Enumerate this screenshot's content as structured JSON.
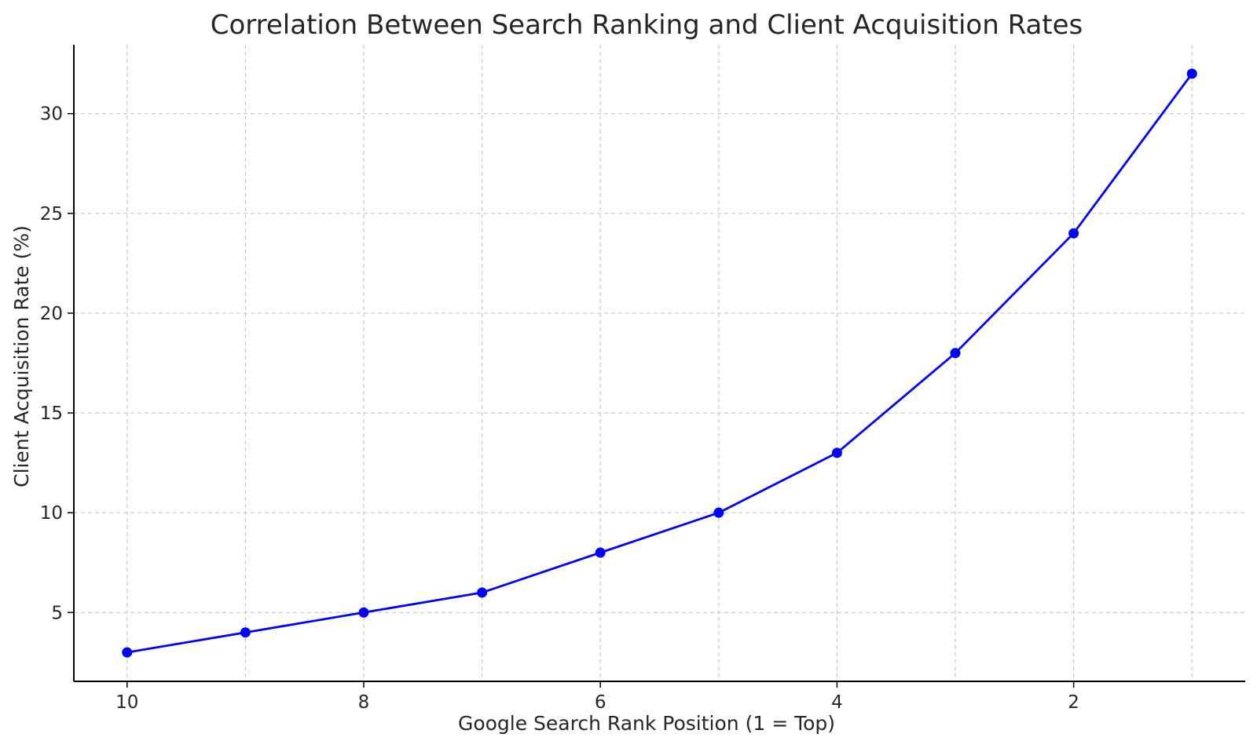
{
  "chart_data": {
    "type": "line",
    "title": "Correlation Between Search Ranking and Client Acquisition Rates",
    "xlabel": "Google Search Rank Position (1 = Top)",
    "ylabel": "Client Acquisition Rate (%)",
    "x_axis_reversed": true,
    "xlim": [
      10.45,
      0.55
    ],
    "ylim": [
      1.55,
      33.45
    ],
    "xticks": [
      10,
      8,
      6,
      4,
      2
    ],
    "yticks": [
      5,
      10,
      15,
      20,
      25,
      30
    ],
    "grid": true,
    "grid_style": "dashed",
    "legend": "none",
    "series": [
      {
        "color": "#0000ff",
        "marker": "circle",
        "x": [
          10,
          9,
          8,
          7,
          6,
          5,
          4,
          3,
          2,
          1
        ],
        "y": [
          3,
          4,
          5,
          6,
          8,
          10,
          13,
          18,
          24,
          32
        ]
      }
    ]
  }
}
